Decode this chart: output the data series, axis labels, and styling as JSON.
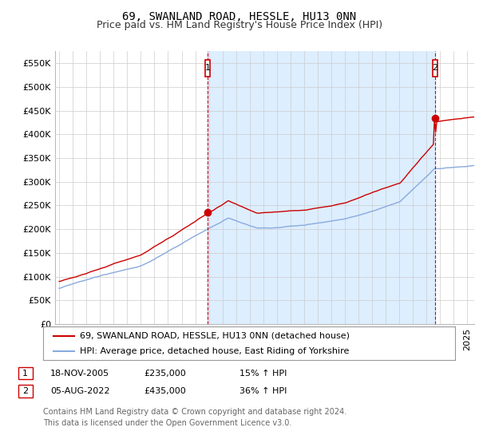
{
  "title": "69, SWANLAND ROAD, HESSLE, HU13 0NN",
  "subtitle": "Price paid vs. HM Land Registry's House Price Index (HPI)",
  "ylabel_ticks": [
    "£0",
    "£50K",
    "£100K",
    "£150K",
    "£200K",
    "£250K",
    "£300K",
    "£350K",
    "£400K",
    "£450K",
    "£500K",
    "£550K"
  ],
  "ytick_values": [
    0,
    50000,
    100000,
    150000,
    200000,
    250000,
    300000,
    350000,
    400000,
    450000,
    500000,
    550000
  ],
  "ylim": [
    0,
    575000
  ],
  "xlim_start": 1994.7,
  "xlim_end": 2025.5,
  "red_line_color": "#cc0000",
  "blue_line_color": "#88aadd",
  "shade_color": "#ddeeff",
  "grid_color": "#cccccc",
  "background_color": "#ffffff",
  "marker1_year": 2005.9,
  "marker1_value": 235000,
  "marker1_label": "1",
  "marker2_year": 2022.6,
  "marker2_value": 435000,
  "marker2_label": "2",
  "legend_line1": "69, SWANLAND ROAD, HESSLE, HU13 0NN (detached house)",
  "legend_line2": "HPI: Average price, detached house, East Riding of Yorkshire",
  "table_row1": [
    "1",
    "18-NOV-2005",
    "£235,000",
    "15% ↑ HPI"
  ],
  "table_row2": [
    "2",
    "05-AUG-2022",
    "£435,000",
    "36% ↑ HPI"
  ],
  "footer": "Contains HM Land Registry data © Crown copyright and database right 2024.\nThis data is licensed under the Open Government Licence v3.0.",
  "title_fontsize": 10,
  "subtitle_fontsize": 9,
  "tick_fontsize": 8,
  "legend_fontsize": 8,
  "footer_fontsize": 7
}
